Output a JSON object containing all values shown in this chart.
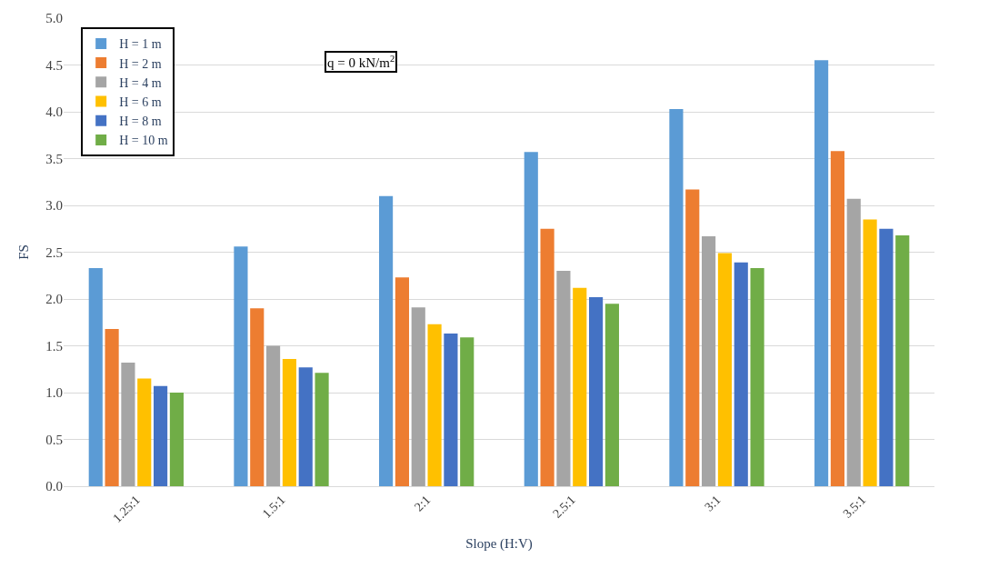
{
  "chart_data": {
    "type": "bar",
    "xlabel": "Slope (H:V)",
    "ylabel": "FS",
    "annotations": [
      "q = 0 kN/m$^{2}$"
    ],
    "categories": [
      "1.25:1",
      "1.5:1",
      "2:1",
      "2.5:1",
      "3:1",
      "3.5:1"
    ],
    "series": [
      {
        "name": "H = 1 m",
        "color": "#5b9bd5",
        "values": [
          2.33,
          2.56,
          3.1,
          3.57,
          4.03,
          4.55
        ]
      },
      {
        "name": "H = 2 m",
        "color": "#ed7d31",
        "values": [
          1.68,
          1.9,
          2.23,
          2.75,
          3.17,
          3.58
        ]
      },
      {
        "name": "H = 4 m",
        "color": "#a5a5a5",
        "values": [
          1.32,
          1.5,
          1.91,
          2.3,
          2.67,
          3.07
        ]
      },
      {
        "name": "H = 6 m",
        "color": "#ffc000",
        "values": [
          1.15,
          1.36,
          1.73,
          2.12,
          2.49,
          2.85
        ]
      },
      {
        "name": "H = 8 m",
        "color": "#4472c4",
        "values": [
          1.07,
          1.27,
          1.63,
          2.02,
          2.39,
          2.75
        ]
      },
      {
        "name": "H = 10 m",
        "color": "#70ad47",
        "values": [
          1.0,
          1.21,
          1.59,
          1.95,
          2.33,
          2.68
        ]
      }
    ],
    "ylim": [
      0,
      5
    ],
    "yticks": [
      {
        "value": 0,
        "label": "0.0"
      },
      {
        "value": 0.5,
        "label": "0.5"
      },
      {
        "value": 1,
        "label": "1.0"
      },
      {
        "value": 1.5,
        "label": "1.5"
      },
      {
        "value": 2,
        "label": "2.0"
      },
      {
        "value": 2.5,
        "label": "2.5"
      },
      {
        "value": 3,
        "label": "3.0"
      },
      {
        "value": 3.5,
        "label": "3.5"
      },
      {
        "value": 4,
        "label": "4.0"
      },
      {
        "value": 4.5,
        "label": "4.5"
      },
      {
        "value": 5,
        "label": "5.0"
      }
    ],
    "grid": "y",
    "legend": "top left"
  }
}
